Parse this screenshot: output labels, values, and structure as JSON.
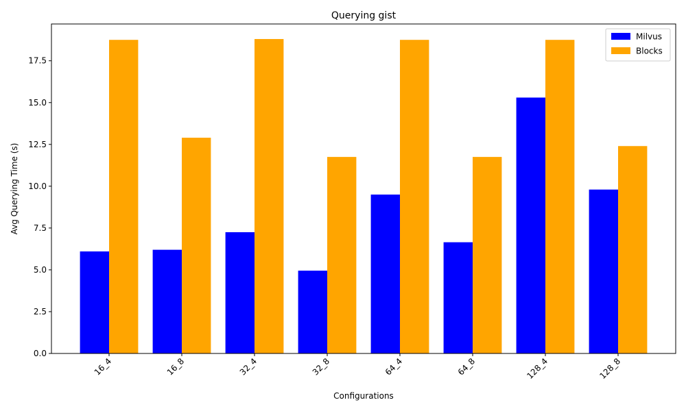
{
  "chart_data": {
    "type": "bar",
    "title": "Querying gist",
    "xlabel": "Configurations",
    "ylabel": "Avg Querying Time (s)",
    "categories": [
      "16_4",
      "16_8",
      "32_4",
      "32_8",
      "64_4",
      "64_8",
      "128_4",
      "128_8"
    ],
    "series": [
      {
        "name": "Milvus",
        "color": "#0000ff",
        "values": [
          6.1,
          6.2,
          7.25,
          4.95,
          9.5,
          6.65,
          15.3,
          9.8
        ]
      },
      {
        "name": "Blocks",
        "color": "#ffa500",
        "values": [
          18.75,
          12.9,
          18.8,
          11.75,
          18.75,
          11.75,
          18.75,
          12.4
        ]
      }
    ],
    "ylim": [
      0,
      19.7
    ],
    "yticks": [
      0.0,
      2.5,
      5.0,
      7.5,
      10.0,
      12.5,
      15.0,
      17.5
    ],
    "ytick_labels": [
      "0.0",
      "2.5",
      "5.0",
      "7.5",
      "10.0",
      "12.5",
      "15.0",
      "17.5"
    ],
    "grid": false,
    "legend_position": "top-right"
  }
}
